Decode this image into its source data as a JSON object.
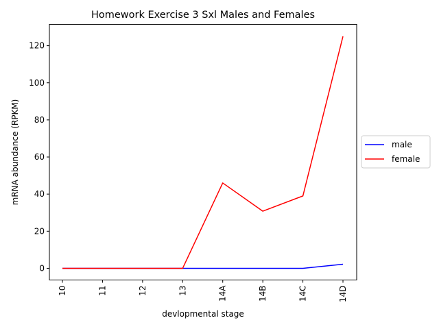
{
  "chart_data": {
    "type": "line",
    "title": "Homework Exercise 3 Sxl Males and Females",
    "xlabel": "devlopmental stage",
    "ylabel": "mRNA abundance (RPKM)",
    "categories": [
      "10",
      "11",
      "12",
      "13",
      "14A",
      "14B",
      "14C",
      "14D"
    ],
    "series": [
      {
        "name": "male",
        "color": "#0000ff",
        "values": [
          0,
          0,
          0,
          0,
          0,
          0,
          0,
          2.2
        ]
      },
      {
        "name": "female",
        "color": "#ff0000",
        "values": [
          0,
          0,
          0,
          0,
          46,
          30.8,
          39,
          125
        ]
      }
    ],
    "ylim": [
      -6.3,
      131.5
    ],
    "yticks": [
      0,
      20,
      40,
      60,
      80,
      100,
      120
    ],
    "grid": false,
    "legend_position": "center-right"
  }
}
